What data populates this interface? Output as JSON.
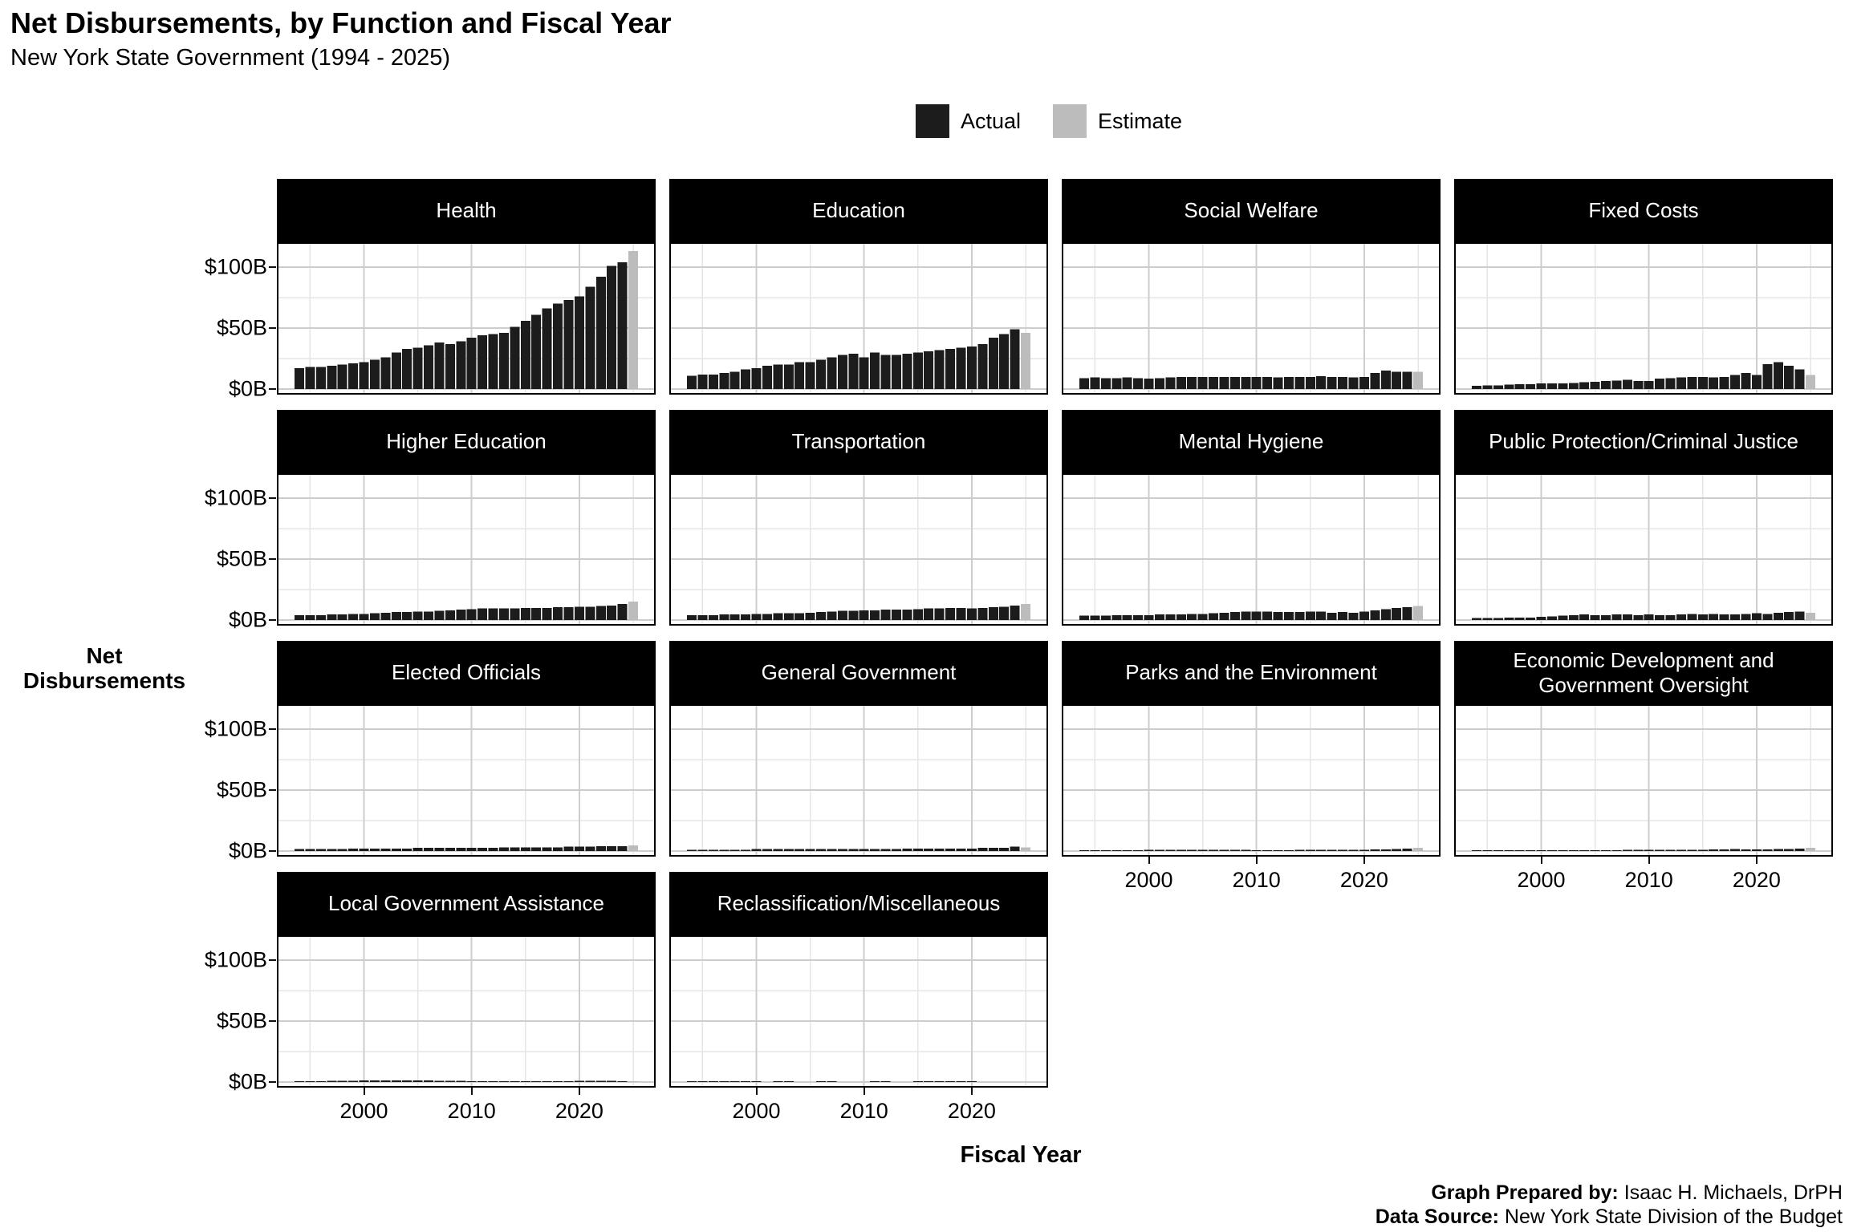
{
  "title": "Net Disbursements, by Function and Fiscal Year",
  "subtitle": "New York State Government (1994 - 2025)",
  "legend": {
    "items": [
      {
        "label": "Actual",
        "color": "#1C1C1C"
      },
      {
        "label": "Estimate",
        "color": "#BCBCBC"
      }
    ]
  },
  "y_axis_label": {
    "line1": "Net",
    "line2": "Disbursements"
  },
  "x_axis_title": "Fiscal Year",
  "caption": {
    "prepared_label": "Graph Prepared by:",
    "prepared_value": " Isaac H. Michaels, DrPH",
    "source_label": "Data Source:",
    "source_value": " New York State Division of the Budget"
  },
  "axes": {
    "y_tick_labels": [
      "$100B",
      "$50B",
      "$0B"
    ],
    "y_tick_values": [
      100,
      50,
      0
    ],
    "x_tick_labels": [
      "2000",
      "2010",
      "2020"
    ],
    "x_tick_values": [
      2000,
      2010,
      2020
    ]
  },
  "colors": {
    "actual": "#1C1C1C",
    "estimate": "#BCBCBC",
    "grid_major": "#CDCDCD",
    "grid_minor": "#E6E6E6",
    "panel_border": "#000000",
    "strip_bg": "#000000",
    "strip_text": "#FFFFFF"
  },
  "chart_data": {
    "type": "bar",
    "title": "Net Disbursements, by Function and Fiscal Year",
    "subtitle": "New York State Government (1994 - 2025)",
    "xlabel": "Fiscal Year",
    "ylabel": "Net Disbursements",
    "unit": "billions USD",
    "ylim_B": [
      0,
      120
    ],
    "y_gridlines_major_B": [
      0,
      50,
      100
    ],
    "y_gridlines_minor_B": [
      25,
      75
    ],
    "x_gridlines_major": [
      2000,
      2010,
      2020
    ],
    "x_gridlines_minor": [
      1995,
      2005,
      2015,
      2025
    ],
    "legend_position": "top",
    "estimate_year": 2025,
    "years": [
      1994,
      1995,
      1996,
      1997,
      1998,
      1999,
      2000,
      2001,
      2002,
      2003,
      2004,
      2005,
      2006,
      2007,
      2008,
      2009,
      2010,
      2011,
      2012,
      2013,
      2014,
      2015,
      2016,
      2017,
      2018,
      2019,
      2020,
      2021,
      2022,
      2023,
      2024,
      2025
    ],
    "facets": [
      {
        "label": "Health",
        "values": [
          17,
          18,
          18,
          19,
          20,
          21,
          22,
          24,
          26,
          30,
          33,
          34,
          36,
          38,
          37,
          39,
          42,
          44,
          45,
          46,
          51,
          56,
          61,
          66,
          70,
          73,
          76,
          84,
          92,
          101,
          104,
          113
        ]
      },
      {
        "label": "Education",
        "values": [
          11,
          12,
          12,
          13,
          14,
          16,
          17,
          19,
          20,
          20,
          22,
          22,
          24,
          26,
          28,
          29,
          26,
          30,
          28,
          28,
          29,
          30,
          31,
          32,
          33,
          34,
          35,
          37,
          42,
          45,
          49,
          46
        ]
      },
      {
        "label": "Social Welfare",
        "values": [
          9,
          9.5,
          9,
          9,
          9.5,
          9,
          8.5,
          9,
          9.5,
          10,
          10,
          10,
          10,
          10,
          10,
          10,
          10,
          10,
          9.5,
          10,
          10,
          10,
          10.5,
          10,
          10,
          9.5,
          10,
          13,
          15,
          14,
          14,
          14
        ]
      },
      {
        "label": "Fixed Costs",
        "values": [
          2.5,
          3,
          3,
          3.5,
          4,
          4,
          4.5,
          4.5,
          4.5,
          5,
          5.5,
          6,
          6.5,
          7,
          7.5,
          6.5,
          6.5,
          8.5,
          9,
          9.5,
          10,
          10,
          9.5,
          10,
          11.5,
          13,
          11.5,
          20.5,
          22,
          19,
          16,
          11.5
        ]
      },
      {
        "label": "Higher Education",
        "values": [
          4,
          4,
          4,
          4.5,
          4.5,
          5,
          5,
          5.5,
          6,
          6.5,
          6.5,
          7,
          7,
          7.5,
          8,
          8.5,
          9,
          9.5,
          9.5,
          9.5,
          9.5,
          10,
          10,
          10,
          10.5,
          10.5,
          11,
          11,
          11.5,
          12,
          13,
          15
        ]
      },
      {
        "label": "Transportation",
        "values": [
          4,
          4,
          4,
          4.5,
          4.5,
          4.5,
          5,
          5,
          5.5,
          5.5,
          5.5,
          6,
          6.5,
          7,
          7.5,
          7.5,
          8,
          8,
          8.5,
          8.5,
          8.5,
          9,
          9.5,
          9.5,
          10,
          10,
          9.5,
          10,
          10.5,
          11,
          12,
          13
        ]
      },
      {
        "label": "Mental Hygiene",
        "values": [
          3.5,
          3.5,
          3.5,
          4,
          4,
          4,
          4,
          4.5,
          4.5,
          4.5,
          5,
          5,
          5.5,
          6,
          6.5,
          7,
          7,
          7,
          6.5,
          6.5,
          6.5,
          7,
          7,
          6,
          6.5,
          6,
          7,
          8,
          9,
          10,
          10.5,
          11.5
        ]
      },
      {
        "label": "Public Protection/Criminal Justice",
        "values": [
          1.5,
          1.5,
          1.5,
          2,
          2,
          2,
          2.5,
          3,
          3.5,
          4,
          4.5,
          4,
          4,
          4.5,
          4.5,
          4,
          4.5,
          4,
          4,
          4.5,
          5,
          4.5,
          5,
          4.5,
          4.5,
          5,
          5.5,
          5,
          6,
          6.5,
          7,
          6
        ]
      },
      {
        "label": "Elected Officials",
        "values": [
          1.5,
          1.5,
          1.5,
          1.5,
          1.5,
          2,
          2,
          2,
          2,
          2,
          2,
          2.5,
          2.5,
          2.5,
          2.5,
          2.5,
          2.5,
          2.5,
          2.5,
          3,
          3,
          3,
          3,
          3,
          3,
          3.5,
          3.5,
          3.5,
          4,
          4,
          4,
          4.5
        ]
      },
      {
        "label": "General Government",
        "values": [
          1,
          1,
          1,
          1,
          1,
          1,
          1.5,
          1.5,
          1.5,
          1.5,
          1.5,
          1.5,
          1.5,
          1.5,
          1.5,
          1.5,
          1.5,
          1.5,
          1.5,
          1.5,
          2,
          2,
          2,
          2,
          2,
          2,
          2,
          2.5,
          2.5,
          2.5,
          3.5,
          3
        ]
      },
      {
        "label": "Parks and the Environment",
        "values": [
          0.8,
          0.8,
          0.8,
          0.8,
          0.8,
          0.8,
          1,
          1,
          1,
          1,
          1,
          1,
          1,
          1,
          1,
          1,
          0.8,
          0.8,
          0.8,
          0.8,
          1,
          1,
          1,
          1,
          1,
          1,
          1,
          1.2,
          1.2,
          1.5,
          2,
          2.5
        ]
      },
      {
        "label": "Economic Development and Government Oversight",
        "values": [
          0.5,
          0.5,
          0.5,
          0.5,
          0.5,
          0.5,
          0.5,
          0.5,
          0.5,
          0.5,
          0.5,
          0.5,
          0.8,
          0.8,
          1,
          1,
          1,
          1,
          1,
          1,
          1,
          1,
          1.2,
          1.2,
          1.5,
          1.2,
          1.2,
          1.2,
          1.5,
          1.5,
          2,
          2.5
        ]
      },
      {
        "label": "Local Government Assistance",
        "values": [
          0.8,
          0.8,
          0.8,
          1,
          1,
          1,
          1.2,
          1.2,
          1.2,
          1.2,
          1.2,
          1.2,
          1.2,
          1,
          1,
          1,
          0.8,
          0.8,
          0.8,
          0.8,
          0.8,
          0.8,
          0.8,
          0.8,
          0.8,
          0.8,
          1,
          1,
          1,
          1,
          0.8,
          0.5
        ]
      },
      {
        "label": "Reclassification/Miscellaneous",
        "values": [
          0.3,
          0.3,
          0.3,
          0.3,
          0.3,
          0.3,
          0.3,
          0,
          0.3,
          0.3,
          0,
          0,
          0.3,
          0.3,
          0,
          0,
          0,
          0.3,
          0.3,
          0,
          0,
          0.3,
          0.3,
          0.3,
          0.3,
          0.3,
          0.3,
          0,
          0,
          0,
          0,
          0
        ]
      }
    ]
  }
}
